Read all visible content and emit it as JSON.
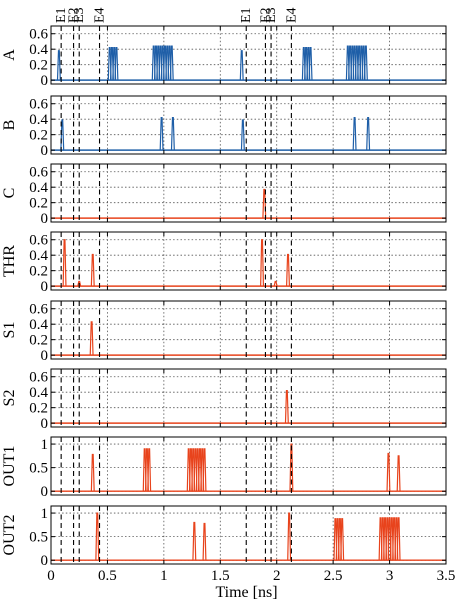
{
  "chart_data": {
    "type": "line",
    "xlabel": "Time [ns]",
    "xlim": [
      0,
      3.5
    ],
    "x_ticks": [
      "0",
      "0.5",
      "1",
      "1.5",
      "2",
      "2.5",
      "3",
      "3.5"
    ],
    "grid": true,
    "event_markers": [
      {
        "label": "E1",
        "x": 0.09
      },
      {
        "label": "E2",
        "x": 0.2
      },
      {
        "label": "E3",
        "x": 0.25
      },
      {
        "label": "E4",
        "x": 0.43
      },
      {
        "label": "E1",
        "x": 1.73
      },
      {
        "label": "E2",
        "x": 1.9
      },
      {
        "label": "E3",
        "x": 1.95
      },
      {
        "label": "E4",
        "x": 2.13
      }
    ],
    "panels": [
      {
        "ylabel": "A",
        "color": "#1f5fa8",
        "ylim": [
          -0.05,
          0.7
        ],
        "yticks": [
          "0",
          "0.2",
          "0.4",
          "0.6"
        ],
        "spikes": [
          [
            0.07,
            0.38
          ],
          [
            0.52,
            0.42
          ],
          [
            0.54,
            0.42
          ],
          [
            0.56,
            0.42
          ],
          [
            0.58,
            0.42
          ],
          [
            0.91,
            0.44
          ],
          [
            0.93,
            0.44
          ],
          [
            0.95,
            0.44
          ],
          [
            0.97,
            0.44
          ],
          [
            0.99,
            0.44
          ],
          [
            1.01,
            0.44
          ],
          [
            1.03,
            0.44
          ],
          [
            1.05,
            0.44
          ],
          [
            1.07,
            0.44
          ],
          [
            1.69,
            0.38
          ],
          [
            2.24,
            0.42
          ],
          [
            2.26,
            0.42
          ],
          [
            2.28,
            0.42
          ],
          [
            2.3,
            0.42
          ],
          [
            2.63,
            0.44
          ],
          [
            2.65,
            0.44
          ],
          [
            2.67,
            0.44
          ],
          [
            2.69,
            0.44
          ],
          [
            2.71,
            0.44
          ],
          [
            2.73,
            0.44
          ],
          [
            2.75,
            0.44
          ],
          [
            2.77,
            0.44
          ],
          [
            2.79,
            0.44
          ]
        ]
      },
      {
        "ylabel": "B",
        "color": "#1f5fa8",
        "ylim": [
          -0.05,
          0.7
        ],
        "yticks": [
          "0",
          "0.2",
          "0.4",
          "0.6"
        ],
        "spikes": [
          [
            0.1,
            0.39
          ],
          [
            0.98,
            0.42
          ],
          [
            1.08,
            0.42
          ],
          [
            1.7,
            0.39
          ],
          [
            2.69,
            0.42
          ],
          [
            2.81,
            0.42
          ]
        ]
      },
      {
        "ylabel": "C",
        "color": "#e8431c",
        "ylim": [
          -0.05,
          0.7
        ],
        "yticks": [
          "0",
          "0.2",
          "0.4",
          "0.6"
        ],
        "spikes": [
          [
            1.89,
            0.37
          ]
        ]
      },
      {
        "ylabel": "THR",
        "color": "#e8431c",
        "ylim": [
          -0.05,
          0.7
        ],
        "yticks": [
          "0",
          "0.2",
          "0.4",
          "0.6"
        ],
        "spikes": [
          [
            0.12,
            0.6
          ],
          [
            0.25,
            0.06
          ],
          [
            0.37,
            0.41
          ],
          [
            1.87,
            0.6
          ],
          [
            1.99,
            0.06
          ],
          [
            2.1,
            0.41
          ]
        ]
      },
      {
        "ylabel": "S1",
        "color": "#e8431c",
        "ylim": [
          -0.05,
          0.7
        ],
        "yticks": [
          "0",
          "0.2",
          "0.4",
          "0.6"
        ],
        "spikes": [
          [
            0.36,
            0.43
          ]
        ]
      },
      {
        "ylabel": "S2",
        "color": "#e8431c",
        "ylim": [
          -0.05,
          0.7
        ],
        "yticks": [
          "0",
          "0.2",
          "0.4",
          "0.6"
        ],
        "spikes": [
          [
            2.09,
            0.42
          ]
        ]
      },
      {
        "ylabel": "OUT1",
        "color": "#e8431c",
        "ylim": [
          -0.08,
          1.15
        ],
        "yticks": [
          "0",
          "0.5",
          "1"
        ],
        "spikes": [
          [
            0.37,
            0.78
          ],
          [
            0.83,
            0.9
          ],
          [
            0.85,
            0.9
          ],
          [
            0.87,
            0.9
          ],
          [
            1.22,
            0.9
          ],
          [
            1.24,
            0.9
          ],
          [
            1.26,
            0.9
          ],
          [
            1.28,
            0.9
          ],
          [
            1.3,
            0.9
          ],
          [
            1.32,
            0.9
          ],
          [
            1.34,
            0.9
          ],
          [
            1.36,
            0.9
          ],
          [
            2.13,
            1.0
          ],
          [
            2.99,
            0.8
          ],
          [
            3.08,
            0.75
          ]
        ]
      },
      {
        "ylabel": "OUT2",
        "color": "#e8431c",
        "ylim": [
          -0.08,
          1.15
        ],
        "yticks": [
          "0",
          "0.5",
          "1"
        ],
        "spikes": [
          [
            0.41,
            1.0
          ],
          [
            1.27,
            0.8
          ],
          [
            1.36,
            0.78
          ],
          [
            2.11,
            1.0
          ],
          [
            2.52,
            0.88
          ],
          [
            2.54,
            0.88
          ],
          [
            2.56,
            0.88
          ],
          [
            2.58,
            0.88
          ],
          [
            2.92,
            0.9
          ],
          [
            2.94,
            0.9
          ],
          [
            2.96,
            0.9
          ],
          [
            2.98,
            0.9
          ],
          [
            3.0,
            0.9
          ],
          [
            3.02,
            0.9
          ],
          [
            3.04,
            0.9
          ],
          [
            3.06,
            0.9
          ],
          [
            3.08,
            0.9
          ]
        ]
      }
    ]
  }
}
